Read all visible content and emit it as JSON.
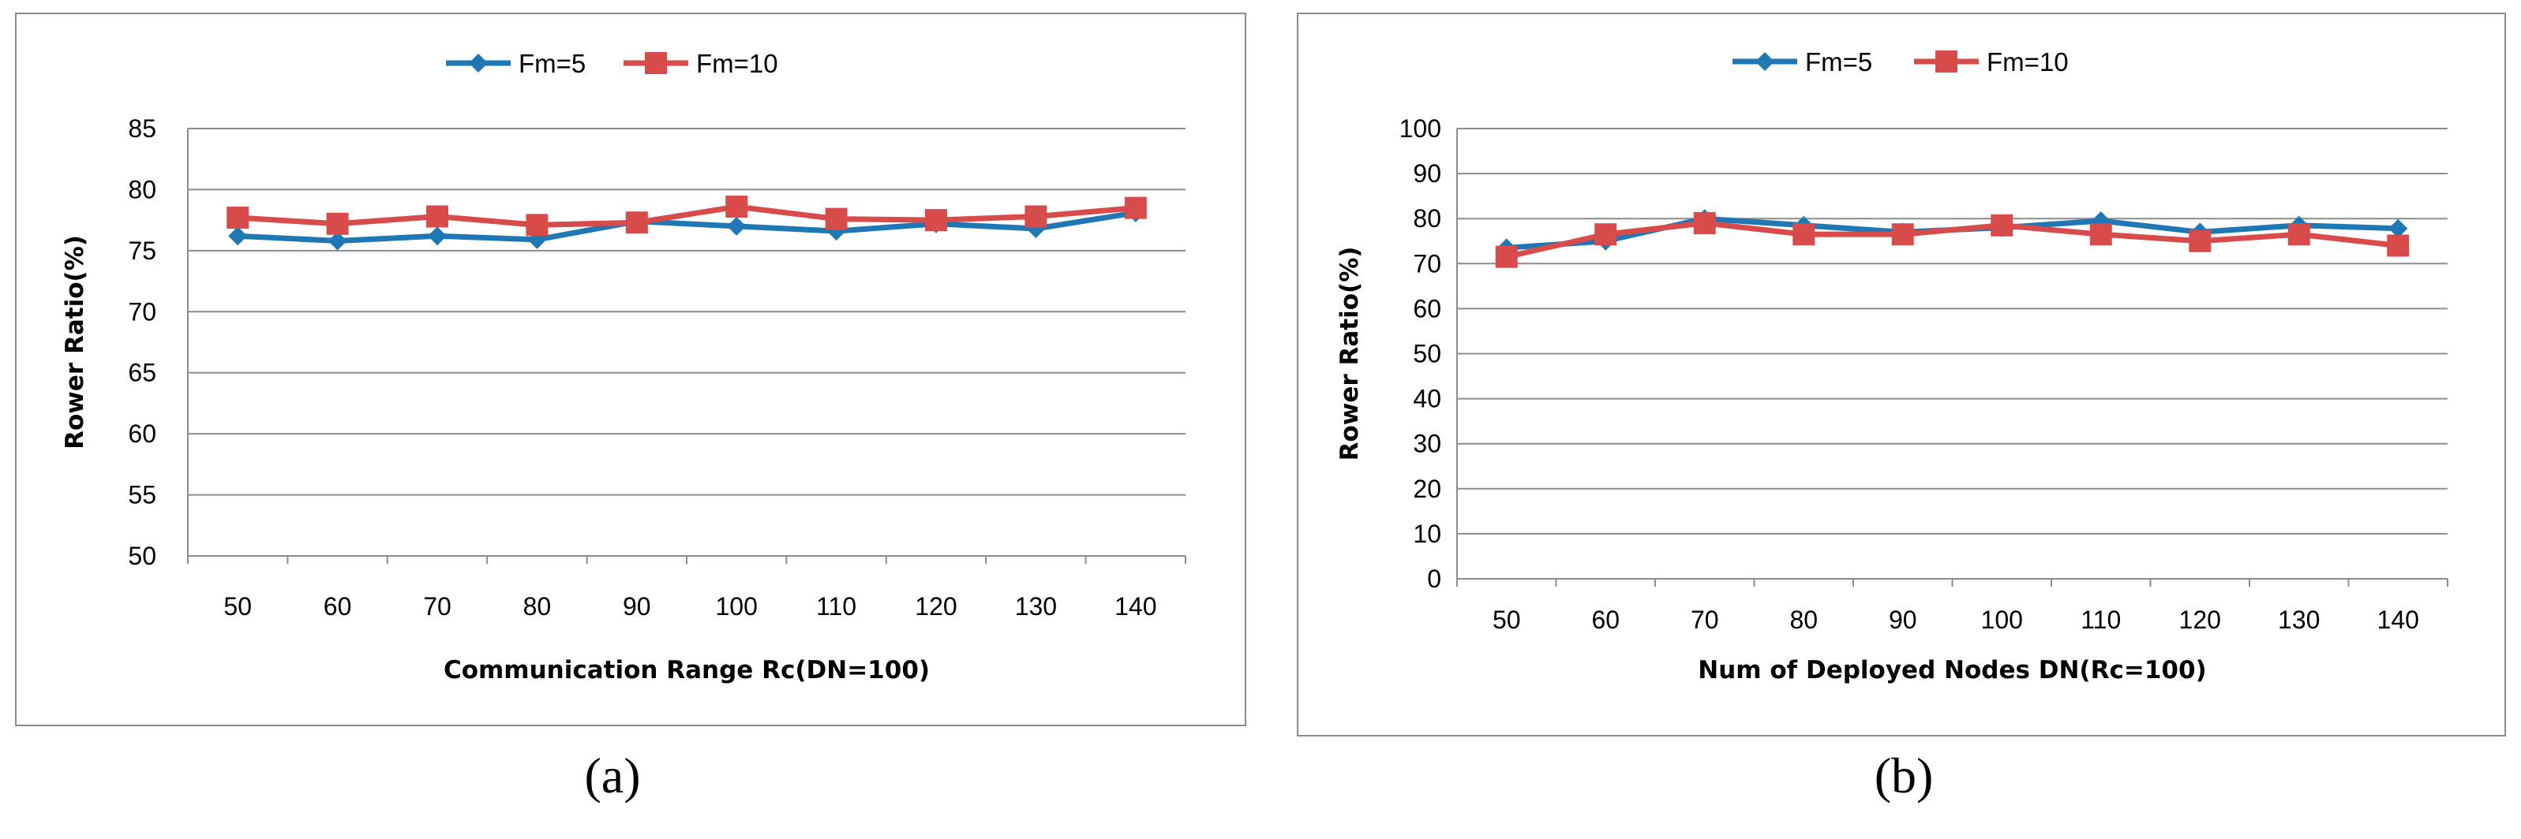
{
  "chart_data": [
    {
      "type": "line",
      "panel_label": "(a)",
      "xlabel": "Communication Range Rc(DN=100)",
      "ylabel": "Rower Ratio(%)",
      "categories": [
        "50",
        "60",
        "70",
        "80",
        "90",
        "100",
        "110",
        "120",
        "130",
        "140"
      ],
      "ylim": [
        50,
        85
      ],
      "yticks": [
        "50",
        "55",
        "60",
        "65",
        "70",
        "75",
        "80",
        "85"
      ],
      "grid": true,
      "legend": "top",
      "series": [
        {
          "name": "Fm=5",
          "color": "#1F77B4",
          "marker": "diamond",
          "values": [
            76.2,
            75.8,
            76.2,
            75.9,
            77.4,
            77.0,
            76.6,
            77.2,
            76.8,
            78.1
          ]
        },
        {
          "name": "Fm=10",
          "color": "#D84B4B",
          "marker": "square",
          "values": [
            77.7,
            77.2,
            77.8,
            77.1,
            77.3,
            78.6,
            77.6,
            77.5,
            77.8,
            78.5
          ]
        }
      ]
    },
    {
      "type": "line",
      "panel_label": "(b)",
      "xlabel": "Num of Deployed Nodes DN(Rc=100)",
      "ylabel": "Rower Ratio(%)",
      "categories": [
        "50",
        "60",
        "70",
        "80",
        "90",
        "100",
        "110",
        "120",
        "130",
        "140"
      ],
      "ylim": [
        0,
        100
      ],
      "yticks": [
        "0",
        "10",
        "20",
        "30",
        "40",
        "50",
        "60",
        "70",
        "80",
        "90",
        "100"
      ],
      "grid": true,
      "legend": "top",
      "series": [
        {
          "name": "Fm=5",
          "color": "#1F77B4",
          "marker": "diamond",
          "values": [
            73.5,
            75.0,
            80.0,
            78.5,
            77.0,
            78.0,
            79.5,
            77.0,
            78.5,
            77.8
          ]
        },
        {
          "name": "Fm=10",
          "color": "#D84B4B",
          "marker": "square",
          "values": [
            71.5,
            76.5,
            79.0,
            76.5,
            76.5,
            78.5,
            76.5,
            75.0,
            76.5,
            74.0
          ]
        }
      ]
    }
  ]
}
